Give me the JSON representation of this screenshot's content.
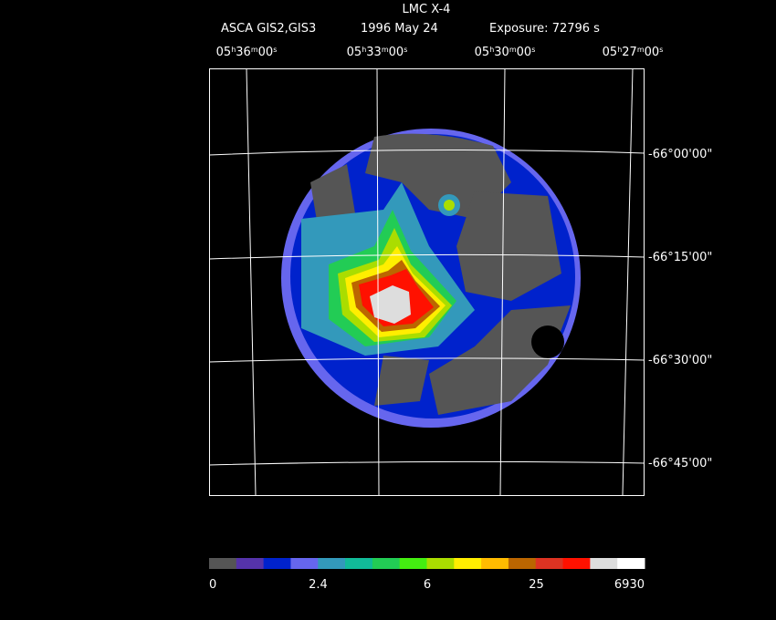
{
  "header": {
    "title": "LMC X-4",
    "instrument": "ASCA GIS2,GIS3",
    "date": "1996 May 24",
    "exposure": "Exposure: 72796 s"
  },
  "ra_labels": [
    "05h36m00s",
    "05h33m00s",
    "05h30m00s",
    "05h27m00s"
  ],
  "dec_labels": [
    "-66°00'00\"",
    "-66°15'00\"",
    "-66°30'00\"",
    "-66°45'00\""
  ],
  "colorbar": {
    "colors": [
      "#555555",
      "#5533aa",
      "#0022cc",
      "#6666ee",
      "#3399bb",
      "#11bb99",
      "#22cc55",
      "#44ee11",
      "#aadd00",
      "#ffee00",
      "#ffbb00",
      "#bb6600",
      "#dd3322",
      "#ff1100",
      "#dddddd",
      "#ffffff"
    ],
    "labels": [
      "0",
      "2.4",
      "6",
      "25",
      "6930"
    ]
  }
}
